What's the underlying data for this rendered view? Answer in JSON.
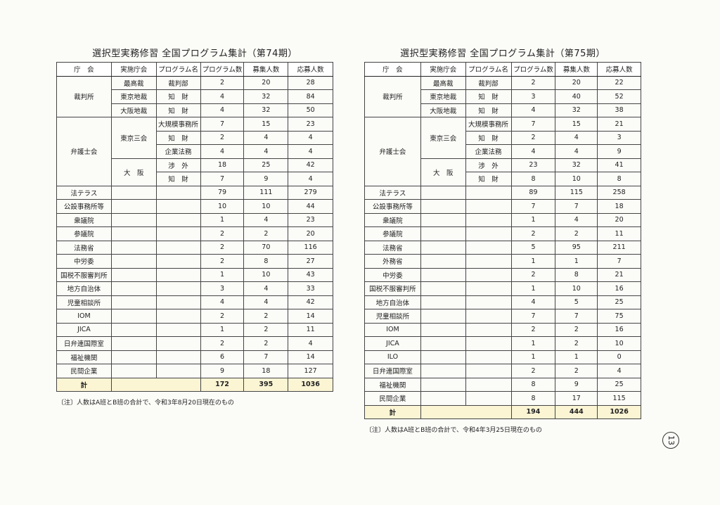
{
  "tables": [
    {
      "title": "選択型実務修習 全国プログラム集計（第74期）",
      "header": [
        "庁　会",
        "実施庁会",
        "プログラム名",
        "プログラム数",
        "募集人数",
        "応募人数"
      ],
      "rows": [
        {
          "agency": "裁判所",
          "units": [
            {
              "unit": "最高裁",
              "programs": [
                {
                  "name": "裁判部",
                  "values": [
                    2,
                    20,
                    28
                  ]
                }
              ]
            },
            {
              "unit": "東京地裁",
              "programs": [
                {
                  "name": "知　財",
                  "values": [
                    4,
                    32,
                    84
                  ]
                }
              ]
            },
            {
              "unit": "大阪地裁",
              "programs": [
                {
                  "name": "知　財",
                  "values": [
                    4,
                    32,
                    50
                  ]
                }
              ]
            }
          ]
        },
        {
          "agency": "弁護士会",
          "units": [
            {
              "unit": "東京三会",
              "programs": [
                {
                  "name": "大規模事務所",
                  "values": [
                    7,
                    15,
                    23
                  ]
                },
                {
                  "name": "知　財",
                  "values": [
                    2,
                    4,
                    4
                  ]
                },
                {
                  "name": "企業法務",
                  "values": [
                    4,
                    4,
                    4
                  ]
                }
              ]
            },
            {
              "unit": "大　阪",
              "programs": [
                {
                  "name": "渉　外",
                  "values": [
                    18,
                    25,
                    42
                  ]
                },
                {
                  "name": "知　財",
                  "values": [
                    7,
                    9,
                    4
                  ]
                }
              ]
            }
          ]
        },
        {
          "agency": "法テラス",
          "values": [
            79,
            111,
            279
          ]
        },
        {
          "agency": "公設事務所等",
          "values": [
            10,
            10,
            44
          ]
        },
        {
          "agency": "衆議院",
          "values": [
            1,
            4,
            23
          ]
        },
        {
          "agency": "参議院",
          "values": [
            2,
            2,
            20
          ]
        },
        {
          "agency": "法務省",
          "values": [
            2,
            70,
            116
          ]
        },
        {
          "agency": "中労委",
          "values": [
            2,
            8,
            27
          ]
        },
        {
          "agency": "国税不服審判所",
          "values": [
            1,
            10,
            43
          ]
        },
        {
          "agency": "地方自治体",
          "values": [
            3,
            4,
            33
          ]
        },
        {
          "agency": "児童相談所",
          "values": [
            4,
            4,
            42
          ]
        },
        {
          "agency": "IOM",
          "values": [
            2,
            2,
            14
          ]
        },
        {
          "agency": "JICA",
          "values": [
            1,
            2,
            11
          ]
        },
        {
          "agency": "日弁連国際室",
          "values": [
            2,
            2,
            4
          ]
        },
        {
          "agency": "福祉機関",
          "values": [
            6,
            7,
            14
          ]
        },
        {
          "agency": "民間企業",
          "values": [
            9,
            18,
            127
          ]
        }
      ],
      "total": {
        "label": "計",
        "values": [
          172,
          395,
          1036
        ]
      },
      "note": "〔注〕人数はA班とB班の合計で、令和3年8月20日現在のもの"
    },
    {
      "title": "選択型実務修習 全国プログラム集計（第75期）",
      "header": [
        "庁　会",
        "実施庁会",
        "プログラム名",
        "プログラム数",
        "募集人数",
        "応募人数"
      ],
      "rows": [
        {
          "agency": "裁判所",
          "units": [
            {
              "unit": "最高裁",
              "programs": [
                {
                  "name": "裁判部",
                  "values": [
                    2,
                    20,
                    22
                  ]
                }
              ]
            },
            {
              "unit": "東京地裁",
              "programs": [
                {
                  "name": "知　財",
                  "values": [
                    3,
                    40,
                    52
                  ]
                }
              ]
            },
            {
              "unit": "大阪地裁",
              "programs": [
                {
                  "name": "知　財",
                  "values": [
                    4,
                    32,
                    38
                  ]
                }
              ]
            }
          ]
        },
        {
          "agency": "弁護士会",
          "units": [
            {
              "unit": "東京三会",
              "programs": [
                {
                  "name": "大規模事務所",
                  "values": [
                    7,
                    15,
                    21
                  ]
                },
                {
                  "name": "知　財",
                  "values": [
                    2,
                    4,
                    3
                  ]
                },
                {
                  "name": "企業法務",
                  "values": [
                    4,
                    4,
                    9
                  ]
                }
              ]
            },
            {
              "unit": "大　阪",
              "programs": [
                {
                  "name": "渉　外",
                  "values": [
                    23,
                    32,
                    41
                  ]
                },
                {
                  "name": "知　財",
                  "values": [
                    8,
                    10,
                    8
                  ]
                }
              ]
            }
          ]
        },
        {
          "agency": "法テラス",
          "values": [
            89,
            115,
            258
          ]
        },
        {
          "agency": "公設事務所等",
          "values": [
            7,
            7,
            18
          ]
        },
        {
          "agency": "衆議院",
          "values": [
            1,
            4,
            20
          ]
        },
        {
          "agency": "参議院",
          "values": [
            2,
            2,
            11
          ]
        },
        {
          "agency": "法務省",
          "values": [
            5,
            95,
            211
          ]
        },
        {
          "agency": "外務省",
          "values": [
            1,
            1,
            7
          ]
        },
        {
          "agency": "中労委",
          "values": [
            2,
            8,
            21
          ]
        },
        {
          "agency": "国税不服審判所",
          "values": [
            1,
            10,
            16
          ]
        },
        {
          "agency": "地方自治体",
          "values": [
            4,
            5,
            25
          ]
        },
        {
          "agency": "児童相談所",
          "values": [
            7,
            7,
            75
          ]
        },
        {
          "agency": "IOM",
          "values": [
            2,
            2,
            16
          ]
        },
        {
          "agency": "JICA",
          "values": [
            1,
            2,
            10
          ]
        },
        {
          "agency": "ILO",
          "values": [
            1,
            1,
            0
          ]
        },
        {
          "agency": "日弁連国際室",
          "values": [
            2,
            2,
            4
          ]
        },
        {
          "agency": "福祉機関",
          "values": [
            8,
            9,
            25
          ]
        },
        {
          "agency": "民間企業",
          "values": [
            8,
            17,
            115
          ]
        }
      ],
      "total": {
        "label": "計",
        "values": [
          194,
          444,
          1026
        ]
      },
      "note": "〔注〕人数はA班とB班の合計で、令和4年3月25日現在のもの"
    }
  ],
  "page_number": "13"
}
